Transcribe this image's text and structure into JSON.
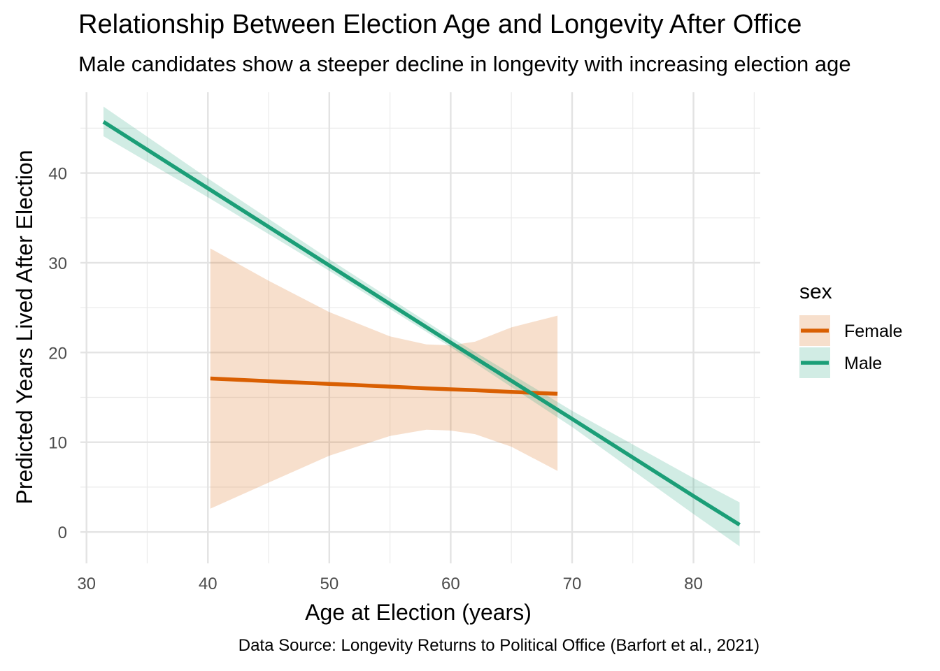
{
  "chart_data": {
    "type": "line",
    "title": "Relationship Between Election Age and Longevity After Office",
    "subtitle": "Male candidates show a steeper decline in longevity with increasing election age",
    "caption": "Data Source: Longevity Returns to Political Office (Barfort et al., 2021)",
    "xlabel": "Age at Election (years)",
    "ylabel": "Predicted Years Lived After Election",
    "xlim": [
      29.5,
      85.5
    ],
    "ylim": [
      -3.5,
      49
    ],
    "x_ticks": [
      30,
      40,
      50,
      60,
      70,
      80
    ],
    "y_ticks": [
      0,
      10,
      20,
      30,
      40
    ],
    "grid": true,
    "legend": {
      "title": "sex",
      "position": "right"
    },
    "series": [
      {
        "name": "Female",
        "color": "#D95F02",
        "x": [
          40.2,
          45,
          50,
          55,
          58,
          60,
          62,
          65,
          68.8
        ],
        "y": [
          17.1,
          16.8,
          16.5,
          16.2,
          16.0,
          15.9,
          15.8,
          15.6,
          15.4
        ],
        "lower": [
          2.6,
          5.5,
          8.5,
          10.7,
          11.4,
          11.3,
          10.9,
          9.5,
          6.8
        ],
        "upper": [
          31.6,
          28.0,
          24.5,
          21.8,
          20.9,
          20.8,
          21.2,
          22.8,
          24.1
        ]
      },
      {
        "name": "Male",
        "color": "#1B9E77",
        "x": [
          31.4,
          40,
          50,
          60,
          70,
          80,
          83.8
        ],
        "y": [
          45.7,
          38.3,
          29.7,
          21.1,
          12.6,
          4.0,
          0.8
        ],
        "lower": [
          44.1,
          37.3,
          29.1,
          20.6,
          11.7,
          2.0,
          -1.6
        ],
        "upper": [
          47.4,
          39.4,
          30.4,
          21.7,
          13.5,
          6.0,
          3.3
        ]
      }
    ]
  }
}
